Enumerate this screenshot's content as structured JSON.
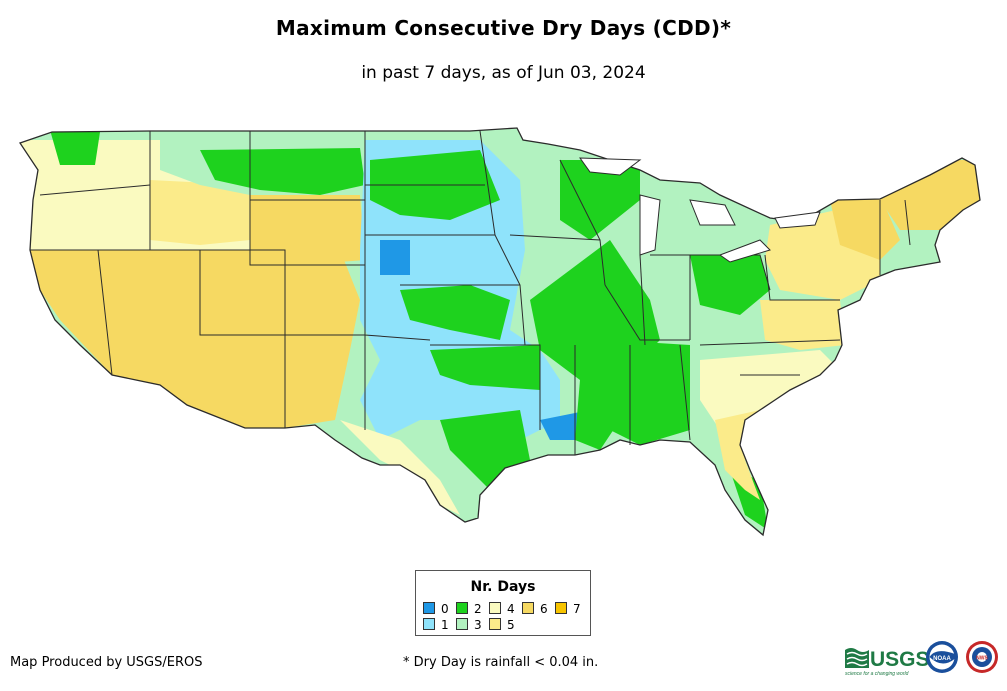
{
  "title": "Maximum Consecutive Dry Days (CDD)*",
  "subtitle": "in past 7 days, as of Jun 03, 2024",
  "legend": {
    "title": "Nr. Days",
    "items": [
      {
        "label": "0",
        "color": "#1f98e6"
      },
      {
        "label": "1",
        "color": "#8fe3fb"
      },
      {
        "label": "2",
        "color": "#1ed21e"
      },
      {
        "label": "3",
        "color": "#b2f2c0"
      },
      {
        "label": "4",
        "color": "#fafac0"
      },
      {
        "label": "5",
        "color": "#fbeb8a"
      },
      {
        "label": "6",
        "color": "#f6d962"
      },
      {
        "label": "7",
        "color": "#f7c400"
      }
    ]
  },
  "footer": {
    "credit": "Map Produced by USGS/EROS",
    "footnote": "* Dry Day is rainfall < 0.04 in."
  },
  "logos": {
    "usgs": "USGS",
    "usgs_tagline": "science for a changing world",
    "noaa": "NOAA",
    "nws": "NWS"
  },
  "map": {
    "region": "Contiguous United States",
    "colors": {
      "border": "#2b2b2b",
      "water": "#ffffff"
    }
  }
}
